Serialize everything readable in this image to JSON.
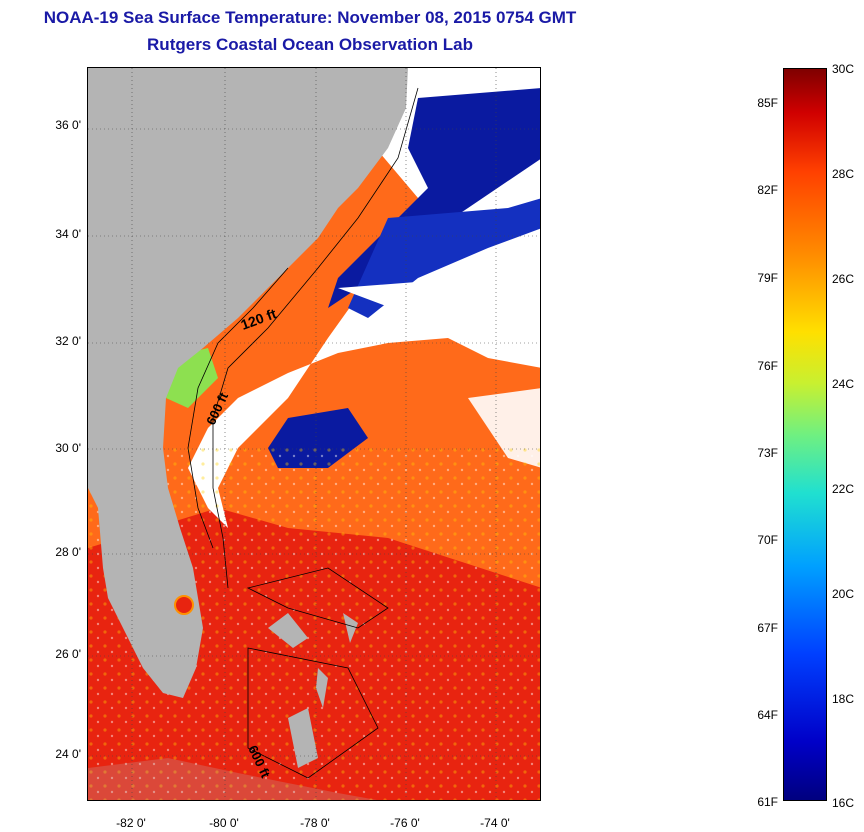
{
  "header": {
    "title": "NOAA-19 Sea Surface Temperature:  November 08, 2015 0754 GMT",
    "subtitle": "Rutgers Coastal Ocean Observation Lab"
  },
  "map": {
    "latitude_labels": [
      "36 0'",
      "34 0'",
      "32 0'",
      "30 0'",
      "28 0'",
      "26 0'",
      "24 0'"
    ],
    "longitude_labels": [
      "-82 0'",
      "-80 0'",
      "-78 0'",
      "-76 0'",
      "-74 0'"
    ],
    "contour_labels": [
      "120 ft",
      "600 ft",
      "600 ft"
    ],
    "colors": {
      "land": "#b4b4b4",
      "cloud": "#ffffff",
      "warm_water": "#ff6a1a",
      "hot_water": "#e82410",
      "cold_water": "#0a1aa0"
    }
  },
  "colorbar": {
    "fahrenheit_labels": [
      "85F",
      "82F",
      "79F",
      "76F",
      "73F",
      "70F",
      "67F",
      "64F",
      "61F"
    ],
    "celsius_labels": [
      "30C",
      "28C",
      "26C",
      "24C",
      "22C",
      "20C",
      "18C",
      "16C"
    ]
  }
}
